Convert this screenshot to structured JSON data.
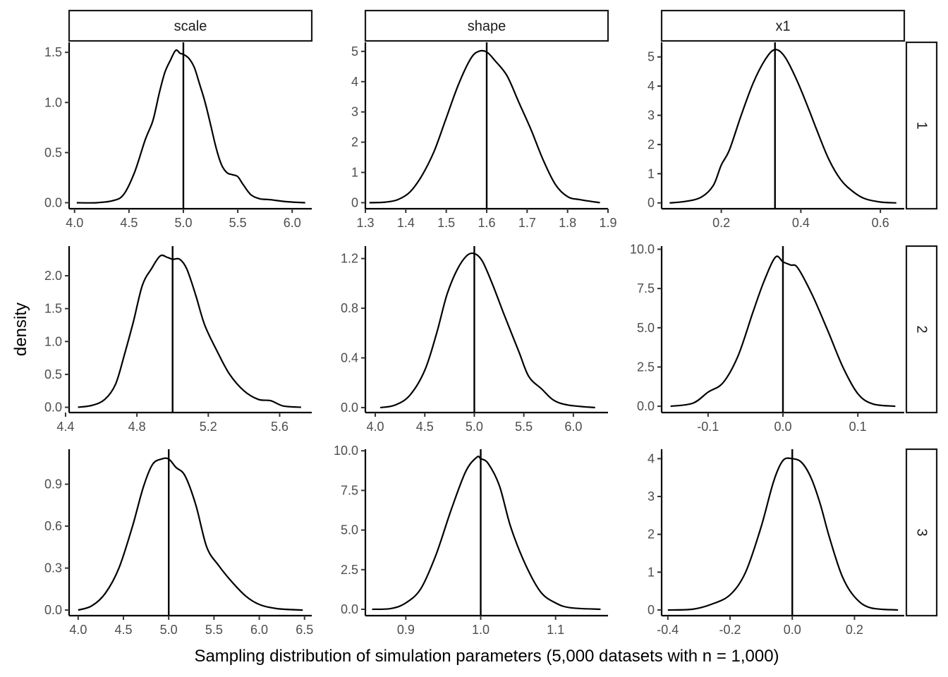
{
  "chart_data": {
    "type": "line",
    "layout": "facet_grid",
    "xlabel": "Sampling distribution of simulation parameters (5,000 datasets with n = 1,000)",
    "ylabel": "density",
    "columns": [
      "scale",
      "shape",
      "x1"
    ],
    "rows": [
      "1",
      "2",
      "3"
    ],
    "grid": false,
    "line_color": "#000000",
    "panels": [
      {
        "row": "1",
        "col": "scale",
        "xlim": [
          3.95,
          6.18
        ],
        "ylim": [
          -0.06,
          1.6
        ],
        "xticks": [
          4.0,
          4.5,
          5.0,
          5.5,
          6.0
        ],
        "xtick_labels": [
          "4.0",
          "4.5",
          "5.0",
          "5.5",
          "6.0"
        ],
        "yticks": [
          0.0,
          0.5,
          1.0,
          1.5
        ],
        "ytick_labels": [
          "0.0",
          "0.5",
          "1.0",
          "1.5"
        ],
        "vline": 5.0,
        "x": [
          4.02,
          4.2,
          4.35,
          4.45,
          4.55,
          4.65,
          4.72,
          4.78,
          4.83,
          4.88,
          4.93,
          4.97,
          5.0,
          5.05,
          5.1,
          5.15,
          5.2,
          5.25,
          5.3,
          5.35,
          5.4,
          5.45,
          5.5,
          5.55,
          5.62,
          5.7,
          5.8,
          5.95,
          6.12
        ],
        "y": [
          0.0,
          0.0,
          0.02,
          0.08,
          0.3,
          0.63,
          0.82,
          1.1,
          1.3,
          1.42,
          1.52,
          1.49,
          1.48,
          1.44,
          1.35,
          1.18,
          1.0,
          0.78,
          0.55,
          0.38,
          0.3,
          0.28,
          0.26,
          0.18,
          0.08,
          0.04,
          0.03,
          0.01,
          0.0
        ]
      },
      {
        "row": "1",
        "col": "shape",
        "xlim": [
          1.3,
          1.9
        ],
        "ylim": [
          -0.2,
          5.3
        ],
        "xticks": [
          1.3,
          1.4,
          1.5,
          1.6,
          1.7,
          1.8,
          1.9
        ],
        "xtick_labels": [
          "1.3",
          "1.4",
          "1.5",
          "1.6",
          "1.7",
          "1.8",
          "1.9"
        ],
        "yticks": [
          0,
          1,
          2,
          3,
          4,
          5
        ],
        "ytick_labels": [
          "0",
          "1",
          "2",
          "3",
          "4",
          "5"
        ],
        "vline": 1.6,
        "x": [
          1.31,
          1.35,
          1.38,
          1.41,
          1.44,
          1.47,
          1.5,
          1.53,
          1.56,
          1.58,
          1.6,
          1.62,
          1.65,
          1.68,
          1.71,
          1.74,
          1.77,
          1.8,
          1.83,
          1.88
        ],
        "y": [
          0.0,
          0.02,
          0.1,
          0.35,
          0.9,
          1.7,
          2.8,
          3.9,
          4.75,
          5.0,
          4.98,
          4.7,
          4.2,
          3.3,
          2.4,
          1.4,
          0.6,
          0.2,
          0.1,
          0.0
        ]
      },
      {
        "row": "1",
        "col": "x1",
        "xlim": [
          0.05,
          0.66
        ],
        "ylim": [
          -0.2,
          5.5
        ],
        "xticks": [
          0.2,
          0.4,
          0.6
        ],
        "xtick_labels": [
          "0.2",
          "0.4",
          "0.6"
        ],
        "yticks": [
          0,
          1,
          2,
          3,
          4,
          5
        ],
        "ytick_labels": [
          "0",
          "1",
          "2",
          "3",
          "4",
          "5"
        ],
        "vline": 0.335,
        "x": [
          0.07,
          0.11,
          0.15,
          0.18,
          0.2,
          0.22,
          0.25,
          0.28,
          0.31,
          0.335,
          0.36,
          0.39,
          0.42,
          0.44,
          0.47,
          0.5,
          0.53,
          0.56,
          0.6,
          0.64
        ],
        "y": [
          0.0,
          0.05,
          0.2,
          0.6,
          1.3,
          1.8,
          3.0,
          4.1,
          4.9,
          5.25,
          5.0,
          4.2,
          3.2,
          2.5,
          1.5,
          0.8,
          0.4,
          0.15,
          0.03,
          0.0
        ]
      },
      {
        "row": "2",
        "col": "scale",
        "xlim": [
          4.42,
          5.78
        ],
        "ylim": [
          -0.08,
          2.45
        ],
        "xticks": [
          4.4,
          4.8,
          5.2,
          5.6
        ],
        "xtick_labels": [
          "4.4",
          "4.8",
          "5.2",
          "5.6"
        ],
        "yticks": [
          0.0,
          0.5,
          1.0,
          1.5,
          2.0
        ],
        "ytick_labels": [
          "0.0",
          "0.5",
          "1.0",
          "1.5",
          "2.0"
        ],
        "vline": 5.0,
        "x": [
          4.47,
          4.55,
          4.62,
          4.68,
          4.73,
          4.78,
          4.83,
          4.88,
          4.93,
          4.97,
          5.0,
          5.04,
          5.08,
          5.13,
          5.18,
          5.25,
          5.32,
          5.4,
          5.48,
          5.55,
          5.62,
          5.72
        ],
        "y": [
          0.0,
          0.03,
          0.12,
          0.35,
          0.8,
          1.3,
          1.85,
          2.1,
          2.3,
          2.28,
          2.25,
          2.25,
          2.1,
          1.7,
          1.25,
          0.85,
          0.5,
          0.25,
          0.12,
          0.1,
          0.02,
          0.0
        ]
      },
      {
        "row": "2",
        "col": "shape",
        "xlim": [
          3.9,
          6.35
        ],
        "ylim": [
          -0.04,
          1.3
        ],
        "xticks": [
          4.0,
          4.5,
          5.0,
          5.5,
          6.0
        ],
        "xtick_labels": [
          "4.0",
          "4.5",
          "5.0",
          "5.5",
          "6.0"
        ],
        "yticks": [
          0.0,
          0.4,
          0.8,
          1.2
        ],
        "ytick_labels": [
          "0.0",
          "0.4",
          "0.8",
          "1.2"
        ],
        "vline": 5.0,
        "x": [
          4.05,
          4.2,
          4.35,
          4.5,
          4.62,
          4.72,
          4.82,
          4.92,
          5.0,
          5.08,
          5.18,
          5.3,
          5.45,
          5.55,
          5.68,
          5.8,
          5.95,
          6.22
        ],
        "y": [
          0.0,
          0.02,
          0.1,
          0.3,
          0.6,
          0.9,
          1.1,
          1.22,
          1.24,
          1.18,
          1.0,
          0.75,
          0.45,
          0.25,
          0.15,
          0.06,
          0.02,
          0.0
        ]
      },
      {
        "row": "2",
        "col": "x1",
        "xlim": [
          -0.162,
          0.162
        ],
        "ylim": [
          -0.4,
          10.2
        ],
        "xticks": [
          -0.1,
          0.0,
          0.1
        ],
        "xtick_labels": [
          "-0.1",
          "0.0",
          "0.1"
        ],
        "yticks": [
          0.0,
          2.5,
          5.0,
          7.5,
          10.0
        ],
        "ytick_labels": [
          "0.0",
          "2.5",
          "5.0",
          "7.5",
          "10.0"
        ],
        "vline": 0.0,
        "x": [
          -0.15,
          -0.12,
          -0.1,
          -0.08,
          -0.06,
          -0.04,
          -0.025,
          -0.01,
          0.0,
          0.01,
          0.02,
          0.04,
          0.06,
          0.08,
          0.1,
          0.12,
          0.15
        ],
        "y": [
          0.0,
          0.2,
          0.9,
          1.5,
          3.2,
          6.0,
          8.0,
          9.5,
          9.2,
          9.0,
          8.8,
          7.0,
          4.8,
          2.5,
          0.8,
          0.15,
          0.0
        ]
      },
      {
        "row": "3",
        "col": "scale",
        "xlim": [
          3.9,
          6.58
        ],
        "ylim": [
          -0.04,
          1.15
        ],
        "xticks": [
          4.0,
          4.5,
          5.0,
          5.5,
          6.0,
          6.5
        ],
        "xtick_labels": [
          "4.0",
          "4.5",
          "5.0",
          "5.5",
          "6.0",
          "6.5"
        ],
        "yticks": [
          0.0,
          0.3,
          0.6,
          0.9
        ],
        "ytick_labels": [
          "0.0",
          "0.3",
          "0.6",
          "0.9"
        ],
        "vline": 5.0,
        "x": [
          4.0,
          4.15,
          4.3,
          4.45,
          4.6,
          4.72,
          4.82,
          4.92,
          5.0,
          5.08,
          5.18,
          5.3,
          5.42,
          5.55,
          5.7,
          5.85,
          6.0,
          6.2,
          6.48
        ],
        "y": [
          0.0,
          0.03,
          0.12,
          0.3,
          0.6,
          0.88,
          1.04,
          1.08,
          1.08,
          1.02,
          0.96,
          0.75,
          0.45,
          0.32,
          0.2,
          0.1,
          0.04,
          0.01,
          0.0
        ]
      },
      {
        "row": "3",
        "col": "shape",
        "xlim": [
          0.846,
          1.17
        ],
        "ylim": [
          -0.4,
          10.1
        ],
        "xticks": [
          0.9,
          1.0,
          1.1
        ],
        "xtick_labels": [
          "0.9",
          "1.0",
          "1.1"
        ],
        "yticks": [
          0.0,
          2.5,
          5.0,
          7.5,
          10.0
        ],
        "ytick_labels": [
          "0.0",
          "2.5",
          "5.0",
          "7.5",
          "10.0"
        ],
        "vline": 1.0,
        "x": [
          0.855,
          0.88,
          0.9,
          0.92,
          0.94,
          0.96,
          0.98,
          0.995,
          1.0,
          1.01,
          1.025,
          1.04,
          1.06,
          1.08,
          1.1,
          1.12,
          1.16
        ],
        "y": [
          0.0,
          0.05,
          0.4,
          1.3,
          3.4,
          6.2,
          8.7,
          9.6,
          9.5,
          9.2,
          7.8,
          5.2,
          2.8,
          1.1,
          0.4,
          0.1,
          0.0
        ]
      },
      {
        "row": "3",
        "col": "x1",
        "xlim": [
          -0.42,
          0.36
        ],
        "ylim": [
          -0.15,
          4.25
        ],
        "xticks": [
          -0.4,
          -0.2,
          0.0,
          0.2
        ],
        "xtick_labels": [
          "-0.4",
          "-0.2",
          "0.0",
          "0.2"
        ],
        "yticks": [
          0,
          1,
          2,
          3,
          4
        ],
        "ytick_labels": [
          "0",
          "1",
          "2",
          "3",
          "4"
        ],
        "vline": 0.0,
        "x": [
          -0.4,
          -0.32,
          -0.26,
          -0.2,
          -0.15,
          -0.1,
          -0.06,
          -0.03,
          0.0,
          0.03,
          0.06,
          0.09,
          0.12,
          0.16,
          0.2,
          0.25,
          0.34
        ],
        "y": [
          0.0,
          0.02,
          0.15,
          0.4,
          1.0,
          2.2,
          3.4,
          3.95,
          4.0,
          3.9,
          3.5,
          2.8,
          1.9,
          0.9,
          0.35,
          0.06,
          0.0
        ]
      }
    ]
  }
}
